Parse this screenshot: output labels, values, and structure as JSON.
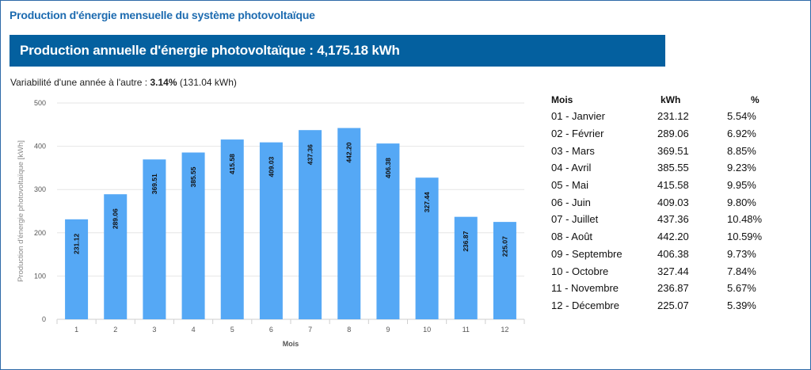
{
  "header": {
    "title": "Production d'énergie mensuelle du système photovoltaïque",
    "banner": "Production annuelle d'énergie photovoltaïque : 4,175.18 kWh"
  },
  "variability": {
    "prefix": "Variabilité d'une année à l'autre : ",
    "value": "3.14%",
    "suffix": " (131.04 kWh)"
  },
  "chart_data": {
    "type": "bar",
    "categories": [
      "1",
      "2",
      "3",
      "4",
      "5",
      "6",
      "7",
      "8",
      "9",
      "10",
      "11",
      "12"
    ],
    "values": [
      231.12,
      289.06,
      369.51,
      385.55,
      415.58,
      409.03,
      437.36,
      442.2,
      406.38,
      327.44,
      236.87,
      225.07
    ],
    "data_labels": [
      "231.12",
      "289.06",
      "369.51",
      "385.55",
      "415.58",
      "409.03",
      "437.36",
      "442.20",
      "406.38",
      "327.44",
      "236.87",
      "225.07"
    ],
    "yticks": [
      "0",
      "100",
      "200",
      "300",
      "400",
      "500"
    ],
    "ylim": [
      0,
      500
    ],
    "xlabel": "Mois",
    "ylabel": "Production d'énergie photovoltaïque [kWh]",
    "grid": true,
    "bar_color": "#55a8f5"
  },
  "table": {
    "headers": [
      "Mois",
      "kWh",
      "%"
    ],
    "rows": [
      [
        "01 - Janvier",
        "231.12",
        "5.54%"
      ],
      [
        "02 - Février",
        "289.06",
        "6.92%"
      ],
      [
        "03 - Mars",
        "369.51",
        "8.85%"
      ],
      [
        "04 - Avril",
        "385.55",
        "9.23%"
      ],
      [
        "05 - Mai",
        "415.58",
        "9.95%"
      ],
      [
        "06 - Juin",
        "409.03",
        "9.80%"
      ],
      [
        "07 - Juillet",
        "437.36",
        "10.48%"
      ],
      [
        "08 - Août",
        "442.20",
        "10.59%"
      ],
      [
        "09 - Septembre",
        "406.38",
        "9.73%"
      ],
      [
        "10 - Octobre",
        "327.44",
        "7.84%"
      ],
      [
        "11 - Novembre",
        "236.87",
        "5.67%"
      ],
      [
        "12 - Décembre",
        "225.07",
        "5.39%"
      ]
    ]
  }
}
